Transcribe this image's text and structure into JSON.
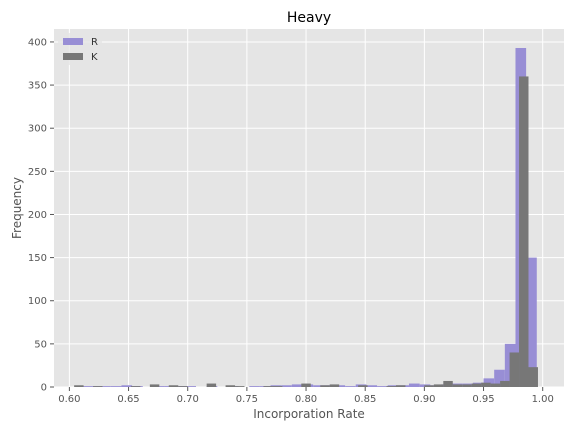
{
  "chart_data": {
    "type": "bar",
    "title": "Heavy",
    "xlabel": "Incorporation Rate",
    "ylabel": "Frequency",
    "xlim": [
      0.587,
      1.018
    ],
    "ylim": [
      0,
      415
    ],
    "xticks": [
      0.6,
      0.65,
      0.7,
      0.75,
      0.8,
      0.85,
      0.9,
      0.95,
      1.0
    ],
    "xtick_labels": [
      "0.60",
      "0.65",
      "0.70",
      "0.75",
      "0.80",
      "0.85",
      "0.90",
      "0.95",
      "1.00"
    ],
    "yticks": [
      0,
      50,
      100,
      150,
      200,
      250,
      300,
      350,
      400
    ],
    "ytick_labels": [
      "0",
      "50",
      "100",
      "150",
      "200",
      "250",
      "300",
      "350",
      "400"
    ],
    "grid": true,
    "legend_position": "top-left",
    "series": [
      {
        "name": "R",
        "color": "#988ed5",
        "bins": [
          [
            0.608,
            0.617,
            1
          ],
          [
            0.617,
            0.626,
            1
          ],
          [
            0.626,
            0.635,
            1
          ],
          [
            0.635,
            0.644,
            1
          ],
          [
            0.644,
            0.653,
            2
          ],
          [
            0.653,
            0.662,
            1
          ],
          [
            0.671,
            0.68,
            1
          ],
          [
            0.68,
            0.689,
            1
          ],
          [
            0.689,
            0.698,
            1
          ],
          [
            0.698,
            0.707,
            1
          ],
          [
            0.716,
            0.725,
            1
          ],
          [
            0.734,
            0.743,
            1
          ],
          [
            0.752,
            0.761,
            1
          ],
          [
            0.761,
            0.77,
            1
          ],
          [
            0.77,
            0.779,
            2
          ],
          [
            0.779,
            0.788,
            2
          ],
          [
            0.788,
            0.797,
            3
          ],
          [
            0.797,
            0.806,
            3
          ],
          [
            0.806,
            0.815,
            2
          ],
          [
            0.815,
            0.824,
            2
          ],
          [
            0.824,
            0.833,
            2
          ],
          [
            0.833,
            0.842,
            1
          ],
          [
            0.842,
            0.851,
            3
          ],
          [
            0.851,
            0.86,
            2
          ],
          [
            0.86,
            0.869,
            1
          ],
          [
            0.869,
            0.878,
            2
          ],
          [
            0.878,
            0.887,
            2
          ],
          [
            0.887,
            0.896,
            4
          ],
          [
            0.896,
            0.905,
            3
          ],
          [
            0.905,
            0.914,
            2
          ],
          [
            0.914,
            0.923,
            3
          ],
          [
            0.923,
            0.932,
            4
          ],
          [
            0.932,
            0.941,
            4
          ],
          [
            0.941,
            0.95,
            5
          ],
          [
            0.95,
            0.959,
            10
          ],
          [
            0.959,
            0.968,
            20
          ],
          [
            0.968,
            0.977,
            50
          ],
          [
            0.977,
            0.986,
            393
          ],
          [
            0.986,
            0.995,
            150
          ]
        ]
      },
      {
        "name": "K",
        "color": "#777777",
        "bins": [
          [
            0.604,
            0.612,
            2
          ],
          [
            0.62,
            0.628,
            1
          ],
          [
            0.652,
            0.66,
            1
          ],
          [
            0.668,
            0.676,
            3
          ],
          [
            0.684,
            0.692,
            2
          ],
          [
            0.692,
            0.7,
            1
          ],
          [
            0.716,
            0.724,
            4
          ],
          [
            0.732,
            0.74,
            2
          ],
          [
            0.74,
            0.748,
            1
          ],
          [
            0.764,
            0.772,
            1
          ],
          [
            0.772,
            0.78,
            1
          ],
          [
            0.796,
            0.804,
            4
          ],
          [
            0.812,
            0.82,
            2
          ],
          [
            0.82,
            0.828,
            3
          ],
          [
            0.844,
            0.852,
            2
          ],
          [
            0.868,
            0.876,
            1
          ],
          [
            0.876,
            0.884,
            2
          ],
          [
            0.9,
            0.908,
            2
          ],
          [
            0.908,
            0.916,
            3
          ],
          [
            0.916,
            0.924,
            7
          ],
          [
            0.924,
            0.932,
            3
          ],
          [
            0.932,
            0.94,
            3
          ],
          [
            0.94,
            0.948,
            4
          ],
          [
            0.948,
            0.956,
            5
          ],
          [
            0.956,
            0.964,
            4
          ],
          [
            0.964,
            0.972,
            7
          ],
          [
            0.972,
            0.98,
            40
          ],
          [
            0.98,
            0.988,
            360
          ],
          [
            0.988,
            0.996,
            23
          ]
        ]
      }
    ]
  }
}
